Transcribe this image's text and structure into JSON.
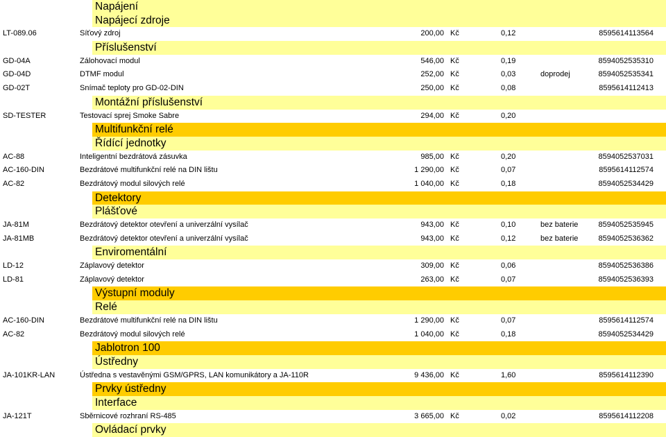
{
  "colors": {
    "band_yellow": "#FFFF99",
    "band_gold": "#FFCC00"
  },
  "rows": [
    {
      "type": "header",
      "style": "yellow",
      "text": "Napájení"
    },
    {
      "type": "header",
      "style": "yellow",
      "text": "Napájecí zdroje"
    },
    {
      "type": "item",
      "code": "LT-089.06",
      "name": "Síťový zdroj",
      "price": "200,00",
      "currency": "Kč",
      "vat": "0,12",
      "note": "",
      "ean": "8595614113564"
    },
    {
      "type": "header",
      "style": "yellow",
      "text": "Příslušenství"
    },
    {
      "type": "item",
      "code": "GD-04A",
      "name": "Zálohovací modul",
      "price": "546,00",
      "currency": "Kč",
      "vat": "0,19",
      "note": "",
      "ean": "8594052535310"
    },
    {
      "type": "item",
      "code": "GD-04D",
      "name": "DTMF modul",
      "price": "252,00",
      "currency": "Kč",
      "vat": "0,03",
      "note": "doprodej",
      "ean": "8594052535341"
    },
    {
      "type": "item",
      "code": "GD-02T",
      "name": "Snímač teploty pro GD-02-DIN",
      "price": "250,00",
      "currency": "Kč",
      "vat": "0,08",
      "note": "",
      "ean": "8595614112413"
    },
    {
      "type": "header",
      "style": "yellow",
      "text": "Montážní příslušenství"
    },
    {
      "type": "item",
      "code": "SD-TESTER",
      "name": "Testovací sprej Smoke Sabre",
      "price": "294,00",
      "currency": "Kč",
      "vat": "0,20",
      "note": "",
      "ean": ""
    },
    {
      "type": "header",
      "style": "gold",
      "text": "Multifunkční relé"
    },
    {
      "type": "header",
      "style": "yellow",
      "text": "Řídící jednotky"
    },
    {
      "type": "item",
      "code": "AC-88",
      "name": "Inteligentní bezdrátová zásuvka",
      "price": "985,00",
      "currency": "Kč",
      "vat": "0,20",
      "note": "",
      "ean": "8594052537031"
    },
    {
      "type": "item",
      "code": "AC-160-DIN",
      "name": "Bezdrátové multifunkční relé na DIN lištu",
      "price": "1 290,00",
      "currency": "Kč",
      "vat": "0,07",
      "note": "",
      "ean": "8595614112574"
    },
    {
      "type": "item",
      "code": "AC-82",
      "name": "Bezdrátový modul silových relé",
      "price": "1 040,00",
      "currency": "Kč",
      "vat": "0,18",
      "note": "",
      "ean": "8594052534429"
    },
    {
      "type": "header",
      "style": "gold",
      "text": "Detektory"
    },
    {
      "type": "header",
      "style": "yellow",
      "text": "Plášťové"
    },
    {
      "type": "item",
      "code": "JA-81M",
      "name": "Bezdrátový detektor otevření a univerzální vysílač",
      "price": "943,00",
      "currency": "Kč",
      "vat": "0,10",
      "note": "bez baterie",
      "ean": "8594052535945"
    },
    {
      "type": "item",
      "code": "JA-81MB",
      "name": "Bezdrátový detektor otevření a univerzální vysílač",
      "price": "943,00",
      "currency": "Kč",
      "vat": "0,12",
      "note": "bez baterie",
      "ean": "8594052536362"
    },
    {
      "type": "header",
      "style": "yellow",
      "text": "Enviromentální"
    },
    {
      "type": "item",
      "code": "LD-12",
      "name": "Záplavový detektor",
      "price": "309,00",
      "currency": "Kč",
      "vat": "0,06",
      "note": "",
      "ean": "8594052536386"
    },
    {
      "type": "item",
      "code": "LD-81",
      "name": "Záplavový detektor",
      "price": "263,00",
      "currency": "Kč",
      "vat": "0,07",
      "note": "",
      "ean": "8594052536393"
    },
    {
      "type": "header",
      "style": "gold",
      "text": "Výstupní moduly"
    },
    {
      "type": "header",
      "style": "yellow",
      "text": "Relé"
    },
    {
      "type": "item",
      "code": "AC-160-DIN",
      "name": "Bezdrátové multifunkční relé na DIN lištu",
      "price": "1 290,00",
      "currency": "Kč",
      "vat": "0,07",
      "note": "",
      "ean": "8595614112574"
    },
    {
      "type": "item",
      "code": "AC-82",
      "name": "Bezdrátový modul silových relé",
      "price": "1 040,00",
      "currency": "Kč",
      "vat": "0,18",
      "note": "",
      "ean": "8594052534429"
    },
    {
      "type": "header",
      "style": "gold",
      "text": "Jablotron 100"
    },
    {
      "type": "header",
      "style": "yellow",
      "text": "Ústředny"
    },
    {
      "type": "item",
      "code": "JA-101KR-LAN",
      "name": "Ústředna s vestavěnými GSM/GPRS, LAN komunikátory a JA-110R",
      "price": "9 436,00",
      "currency": "Kč",
      "vat": "1,60",
      "note": "",
      "ean": "8595614112390"
    },
    {
      "type": "header",
      "style": "gold",
      "text": "Prvky ústředny"
    },
    {
      "type": "header",
      "style": "yellow",
      "text": "Interface"
    },
    {
      "type": "item",
      "code": "JA-121T",
      "name": "Sběrnicové rozhraní RS-485",
      "price": "3 665,00",
      "currency": "Kč",
      "vat": "0,02",
      "note": "",
      "ean": "8595614112208"
    },
    {
      "type": "header",
      "style": "yellow",
      "text": "Ovládací prvky"
    }
  ]
}
